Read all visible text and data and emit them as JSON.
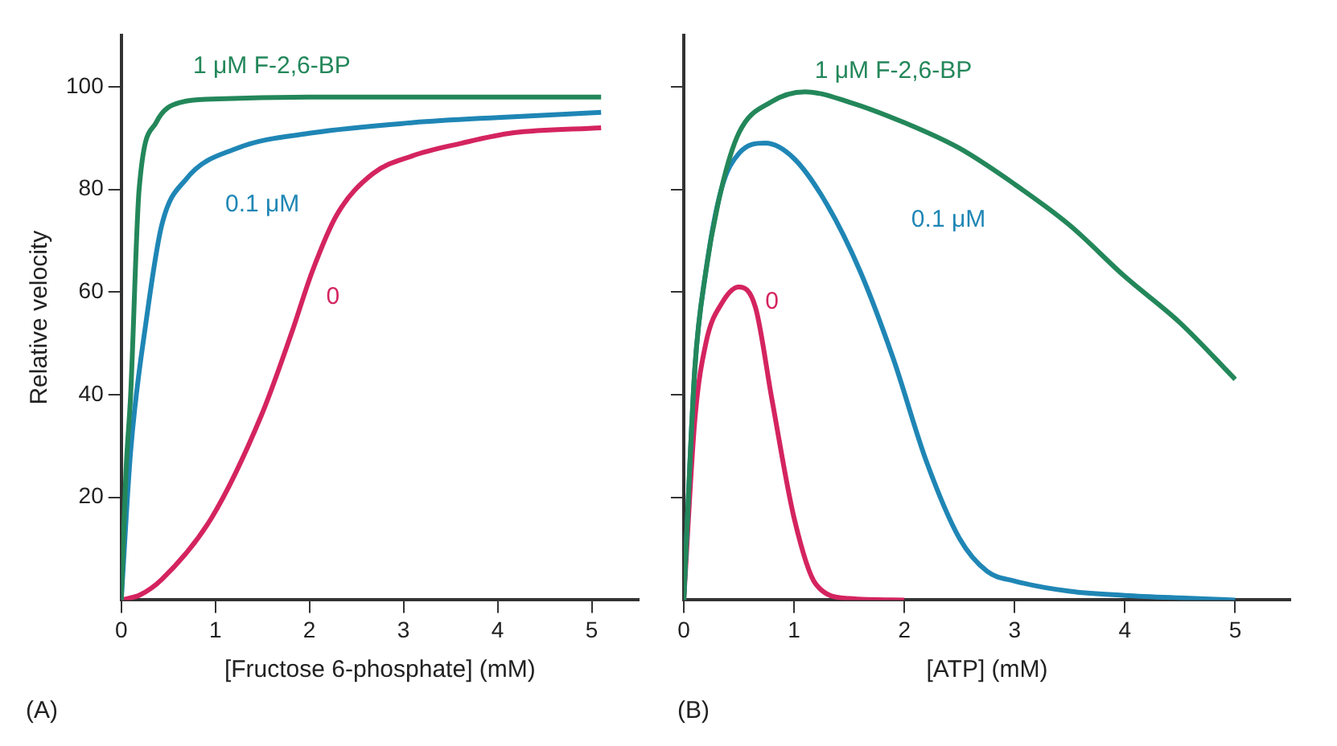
{
  "chart_data": [
    {
      "type": "line",
      "xlabel": "[Fructose 6-phosphate] (mM)",
      "ylabel": "Relative velocity",
      "annotations": [
        "(A)"
      ],
      "xlim": [
        0,
        5.5
      ],
      "ylim": [
        0,
        110
      ],
      "xticks": [
        0,
        1,
        2,
        3,
        4,
        5
      ],
      "yticks": [
        20,
        40,
        60,
        80,
        100
      ],
      "grid": false,
      "legend": false,
      "series": [
        {
          "name": "1 μM F-2,6-BP",
          "color": "#23875a",
          "x": [
            0,
            0.05,
            0.1,
            0.19,
            0.37,
            0.64,
            0.96,
            2,
            3,
            4,
            5.1
          ],
          "values": [
            0,
            25,
            40,
            80,
            93,
            97,
            97.6,
            98,
            98,
            98,
            98
          ]
        },
        {
          "name": "0.1 μM",
          "color": "#1f86b5",
          "x": [
            0,
            0.1,
            0.27,
            0.43,
            0.69,
            1.23,
            2.03,
            3.1,
            4,
            5.1
          ],
          "values": [
            0,
            29,
            55,
            73,
            82,
            88,
            91,
            93,
            94,
            95
          ]
        },
        {
          "name": "0",
          "color": "#d4245f",
          "x": [
            0,
            0.2,
            0.43,
            0.96,
            1.49,
            1.81,
            2.03,
            2.29,
            2.67,
            3.09,
            3.62,
            4.16,
            5.1
          ],
          "values": [
            0,
            1,
            4,
            16,
            36,
            52,
            64,
            75,
            83,
            86.5,
            89,
            91,
            92
          ]
        }
      ]
    },
    {
      "type": "line",
      "xlabel": "[ATP] (mM)",
      "annotations": [
        "(B)"
      ],
      "xlim": [
        0,
        5.5
      ],
      "ylim": [
        0,
        110
      ],
      "xticks": [
        0,
        1,
        2,
        3,
        4,
        5
      ],
      "yticks": [
        {
          "value": 20,
          "label": null
        },
        {
          "value": 40,
          "label": null
        },
        {
          "value": 60,
          "label": null
        },
        {
          "value": 80,
          "label": null
        },
        {
          "value": 100,
          "label": null
        }
      ],
      "tick_labels": "x",
      "grid": false,
      "legend": false,
      "series": [
        {
          "name": "1 μM F-2,6-BP",
          "color": "#23875a",
          "x": [
            0,
            0.1,
            0.2,
            0.34,
            0.5,
            0.79,
            1.1,
            1.5,
            2,
            2.5,
            3,
            3.5,
            4,
            4.5,
            5
          ],
          "values": [
            0,
            45,
            64,
            80,
            91,
            97,
            99,
            97,
            93,
            88,
            81,
            73,
            63,
            54,
            43
          ]
        },
        {
          "name": "0.1 μM",
          "color": "#1f86b5",
          "x": [
            0,
            0.1,
            0.2,
            0.34,
            0.5,
            0.74,
            1,
            1.3,
            1.6,
            1.9,
            2.2,
            2.5,
            2.75,
            3,
            3.5,
            4,
            4.5,
            5
          ],
          "values": [
            0,
            45,
            64,
            80,
            87,
            89,
            86,
            77,
            64,
            47,
            27,
            12,
            5.6,
            3.7,
            1.7,
            0.9,
            0.4,
            0
          ]
        },
        {
          "name": "0",
          "color": "#d4245f",
          "x": [
            0,
            0.1,
            0.2,
            0.35,
            0.5,
            0.65,
            0.8,
            1,
            1.2,
            1.5,
            2
          ],
          "values": [
            0,
            35,
            50,
            58,
            61,
            57,
            39,
            16,
            3,
            0.3,
            0
          ]
        }
      ]
    }
  ]
}
